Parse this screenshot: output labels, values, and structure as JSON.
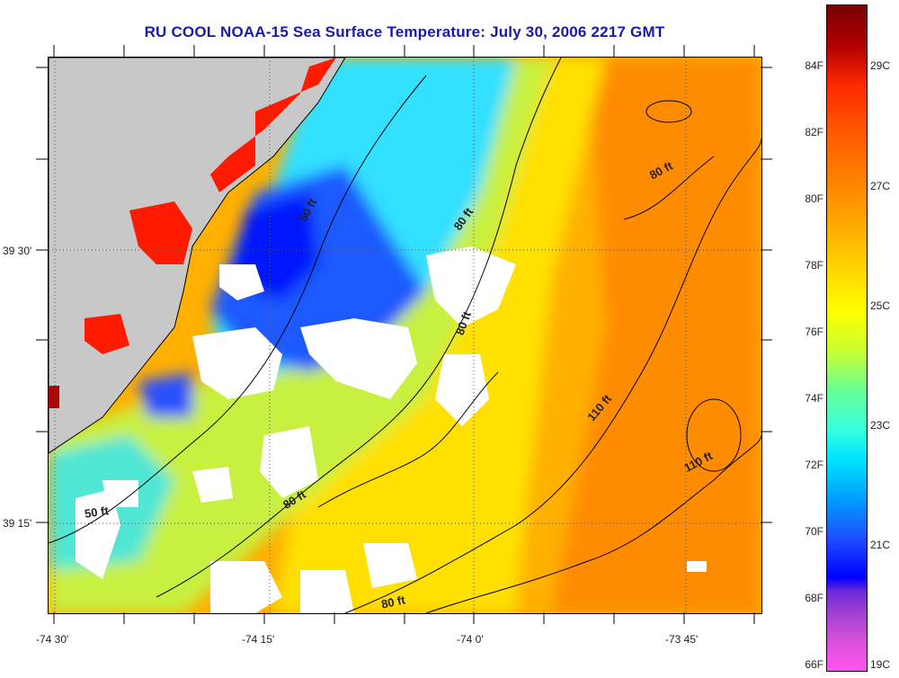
{
  "title": "RU COOL  NOAA-15  Sea Surface Temperature:  July 30, 2006 2217 GMT",
  "map": {
    "lat_labels": [
      "39 30'",
      "39 15'"
    ],
    "lon_labels": [
      "-74 30'",
      "-74 15'",
      "-74 0'",
      "-73 45'"
    ],
    "depth_contour_labels": [
      "50 ft",
      "50 ft",
      "80 ft",
      "80 ft",
      "80 ft",
      "80 ft",
      "80 ft",
      "110 ft",
      "110 ft"
    ],
    "colors": {
      "land": "#c8c8c8",
      "cloud": "#ffffff",
      "cold": "#1e3cff",
      "cool": "#33d0ff",
      "mild": "#b8f04a",
      "warm": "#ffd400",
      "hot": "#ff9a00",
      "very_hot": "#ff1a00"
    }
  },
  "colorbar": {
    "fahrenheit_labels": [
      "84F",
      "82F",
      "80F",
      "78F",
      "76F",
      "74F",
      "72F",
      "70F",
      "68F",
      "66F"
    ],
    "celsius_labels": [
      "29C",
      "27C",
      "25C",
      "23C",
      "21C",
      "19C"
    ]
  }
}
